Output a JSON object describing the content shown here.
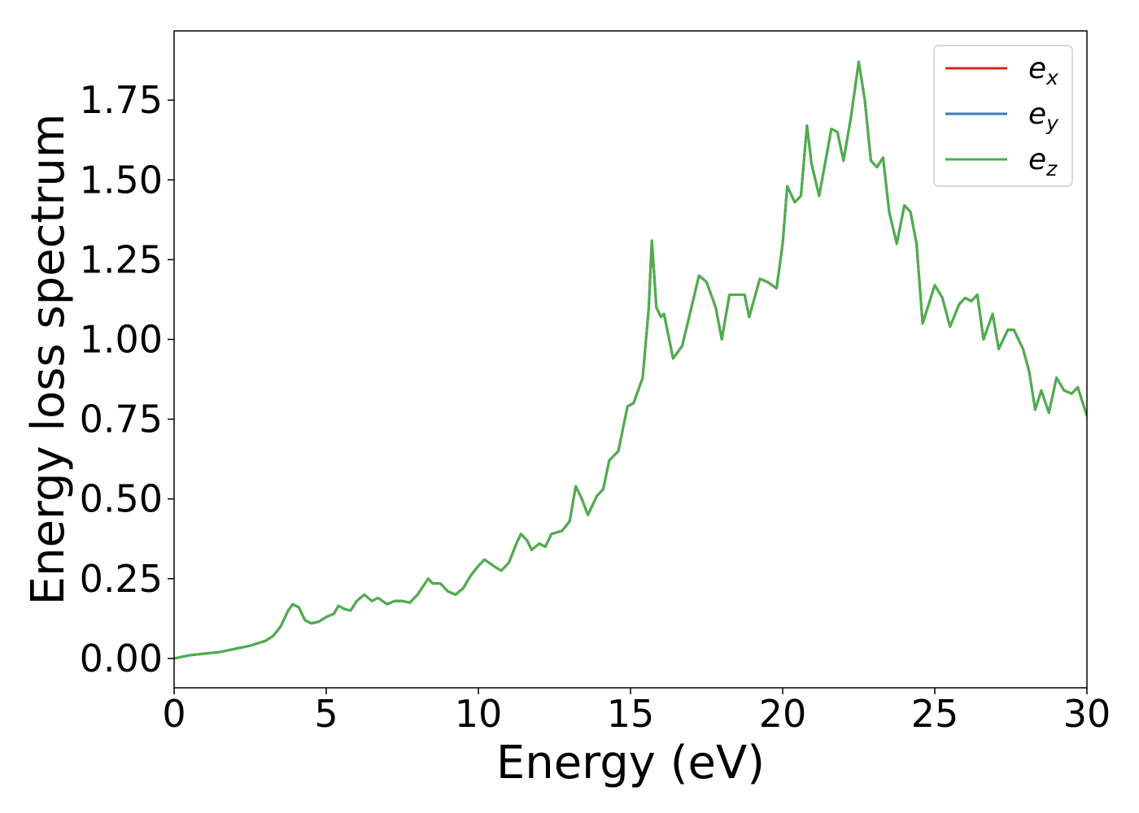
{
  "chart_data": {
    "type": "line",
    "xlabel": "Energy (eV)",
    "ylabel": "Energy loss spectrum",
    "x": [
      0,
      0.5,
      1,
      1.5,
      2,
      2.5,
      3,
      3.25,
      3.5,
      3.75,
      3.9,
      4.1,
      4.3,
      4.5,
      4.75,
      5,
      5.25,
      5.4,
      5.6,
      5.8,
      6,
      6.25,
      6.5,
      6.7,
      7,
      7.25,
      7.5,
      7.75,
      8,
      8.35,
      8.5,
      8.75,
      9,
      9.25,
      9.5,
      9.75,
      10,
      10.2,
      10.5,
      10.75,
      11,
      11.25,
      11.4,
      11.6,
      11.75,
      12,
      12.2,
      12.4,
      12.75,
      13,
      13.2,
      13.4,
      13.6,
      13.9,
      14.1,
      14.3,
      14.6,
      14.9,
      15.1,
      15.4,
      15.6,
      15.7,
      15.85,
      16,
      16.1,
      16.4,
      16.7,
      17,
      17.25,
      17.5,
      17.8,
      18,
      18.25,
      18.5,
      18.75,
      18.9,
      19.25,
      19.5,
      19.8,
      20,
      20.15,
      20.4,
      20.6,
      20.8,
      20.95,
      21.2,
      21.6,
      21.8,
      22,
      22.25,
      22.5,
      22.7,
      22.9,
      23.1,
      23.3,
      23.5,
      23.75,
      24,
      24.2,
      24.4,
      24.6,
      25,
      25.25,
      25.5,
      25.8,
      26,
      26.2,
      26.4,
      26.6,
      26.9,
      27.1,
      27.4,
      27.6,
      27.9,
      28.1,
      28.3,
      28.5,
      28.75,
      29,
      29.25,
      29.5,
      29.7,
      30
    ],
    "series": [
      {
        "name": "ex",
        "color": "#d62728",
        "values": [
          0,
          0.01,
          0.015,
          0.02,
          0.03,
          0.04,
          0.055,
          0.07,
          0.1,
          0.15,
          0.17,
          0.16,
          0.12,
          0.11,
          0.115,
          0.13,
          0.14,
          0.165,
          0.155,
          0.15,
          0.18,
          0.2,
          0.18,
          0.19,
          0.17,
          0.18,
          0.18,
          0.175,
          0.2,
          0.25,
          0.235,
          0.235,
          0.21,
          0.2,
          0.22,
          0.26,
          0.29,
          0.31,
          0.29,
          0.275,
          0.3,
          0.36,
          0.39,
          0.37,
          0.34,
          0.36,
          0.35,
          0.39,
          0.4,
          0.43,
          0.54,
          0.5,
          0.45,
          0.51,
          0.53,
          0.62,
          0.65,
          0.79,
          0.8,
          0.88,
          1.1,
          1.31,
          1.1,
          1.07,
          1.08,
          0.94,
          0.98,
          1.1,
          1.2,
          1.18,
          1.1,
          1.0,
          1.14,
          1.14,
          1.14,
          1.07,
          1.19,
          1.18,
          1.16,
          1.3,
          1.48,
          1.43,
          1.45,
          1.67,
          1.55,
          1.45,
          1.66,
          1.65,
          1.56,
          1.7,
          1.87,
          1.75,
          1.56,
          1.54,
          1.57,
          1.4,
          1.3,
          1.42,
          1.4,
          1.3,
          1.05,
          1.17,
          1.13,
          1.04,
          1.11,
          1.13,
          1.12,
          1.14,
          1.0,
          1.08,
          0.97,
          1.03,
          1.03,
          0.97,
          0.9,
          0.78,
          0.84,
          0.77,
          0.88,
          0.84,
          0.83,
          0.85,
          0.76
        ]
      },
      {
        "name": "ey",
        "color": "#377eb8",
        "values": [
          0,
          0.01,
          0.015,
          0.02,
          0.03,
          0.04,
          0.055,
          0.07,
          0.1,
          0.15,
          0.17,
          0.16,
          0.12,
          0.11,
          0.115,
          0.13,
          0.14,
          0.165,
          0.155,
          0.15,
          0.18,
          0.2,
          0.18,
          0.19,
          0.17,
          0.18,
          0.18,
          0.175,
          0.2,
          0.25,
          0.235,
          0.235,
          0.21,
          0.2,
          0.22,
          0.26,
          0.29,
          0.31,
          0.29,
          0.275,
          0.3,
          0.36,
          0.39,
          0.37,
          0.34,
          0.36,
          0.35,
          0.39,
          0.4,
          0.43,
          0.54,
          0.5,
          0.45,
          0.51,
          0.53,
          0.62,
          0.65,
          0.79,
          0.8,
          0.88,
          1.1,
          1.31,
          1.1,
          1.07,
          1.08,
          0.94,
          0.98,
          1.1,
          1.2,
          1.18,
          1.1,
          1.0,
          1.14,
          1.14,
          1.14,
          1.07,
          1.19,
          1.18,
          1.16,
          1.3,
          1.48,
          1.43,
          1.45,
          1.67,
          1.55,
          1.45,
          1.66,
          1.65,
          1.56,
          1.7,
          1.87,
          1.75,
          1.56,
          1.54,
          1.57,
          1.4,
          1.3,
          1.42,
          1.4,
          1.3,
          1.05,
          1.17,
          1.13,
          1.04,
          1.11,
          1.13,
          1.12,
          1.14,
          1.0,
          1.08,
          0.97,
          1.03,
          1.03,
          0.97,
          0.9,
          0.78,
          0.84,
          0.77,
          0.88,
          0.84,
          0.83,
          0.85,
          0.76
        ]
      },
      {
        "name": "ez",
        "color": "#4daf4a",
        "values": [
          0,
          0.01,
          0.015,
          0.02,
          0.03,
          0.04,
          0.055,
          0.07,
          0.1,
          0.15,
          0.17,
          0.16,
          0.12,
          0.11,
          0.115,
          0.13,
          0.14,
          0.165,
          0.155,
          0.15,
          0.18,
          0.2,
          0.18,
          0.19,
          0.17,
          0.18,
          0.18,
          0.175,
          0.2,
          0.25,
          0.235,
          0.235,
          0.21,
          0.2,
          0.22,
          0.26,
          0.29,
          0.31,
          0.29,
          0.275,
          0.3,
          0.36,
          0.39,
          0.37,
          0.34,
          0.36,
          0.35,
          0.39,
          0.4,
          0.43,
          0.54,
          0.5,
          0.45,
          0.51,
          0.53,
          0.62,
          0.65,
          0.79,
          0.8,
          0.88,
          1.1,
          1.31,
          1.1,
          1.07,
          1.08,
          0.94,
          0.98,
          1.1,
          1.2,
          1.18,
          1.1,
          1.0,
          1.14,
          1.14,
          1.14,
          1.07,
          1.19,
          1.18,
          1.16,
          1.3,
          1.48,
          1.43,
          1.45,
          1.67,
          1.55,
          1.45,
          1.66,
          1.65,
          1.56,
          1.7,
          1.87,
          1.75,
          1.56,
          1.54,
          1.57,
          1.4,
          1.3,
          1.42,
          1.4,
          1.3,
          1.05,
          1.17,
          1.13,
          1.04,
          1.11,
          1.13,
          1.12,
          1.14,
          1.0,
          1.08,
          0.97,
          1.03,
          1.03,
          0.97,
          0.9,
          0.78,
          0.84,
          0.77,
          0.88,
          0.84,
          0.83,
          0.85,
          0.76
        ]
      }
    ],
    "xlim": [
      0,
      30
    ],
    "xticks": [
      0,
      5,
      10,
      15,
      20,
      25,
      30
    ],
    "ylim": [
      -0.092,
      1.967
    ],
    "yticks": [
      {
        "value": 0,
        "label": "0.00"
      },
      {
        "value": 0.25,
        "label": "0.25"
      },
      {
        "value": 0.5,
        "label": "0.50"
      },
      {
        "value": 0.75,
        "label": "0.75"
      },
      {
        "value": 1,
        "label": "1.00"
      },
      {
        "value": 1.25,
        "label": "1.25"
      },
      {
        "value": 1.5,
        "label": "1.50"
      },
      {
        "value": 1.75,
        "label": "1.75"
      }
    ],
    "legend": "upper right"
  }
}
